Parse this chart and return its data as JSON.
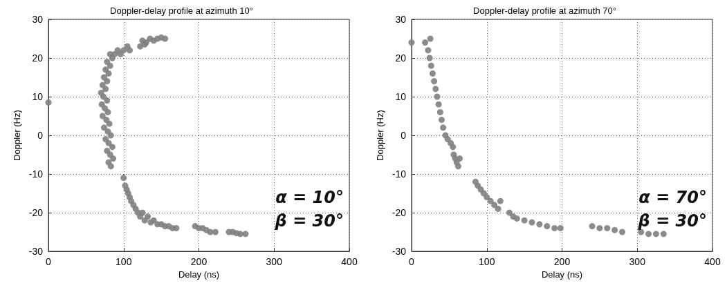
{
  "chart_data": [
    {
      "type": "scatter",
      "title": "Doppler-delay profile at azimuth 10°",
      "xlabel": "Delay (ns)",
      "ylabel": "Doppler (Hz)",
      "xlim": [
        0,
        400
      ],
      "xticks": [
        0,
        100,
        200,
        300,
        400
      ],
      "ylim": [
        -30,
        30
      ],
      "yticks": [
        -30,
        -20,
        -10,
        0,
        10,
        20,
        30
      ],
      "grid": true,
      "marker": "circle",
      "annotations": [
        "α = 10°",
        "β = 30°"
      ],
      "series": [
        {
          "color": "#808080",
          "x": [
            0,
            83,
            80,
            86,
            82,
            78,
            85,
            80,
            76,
            83,
            79,
            74,
            81,
            77,
            72,
            79,
            75,
            71,
            78,
            73,
            70,
            76,
            72,
            78,
            74,
            80,
            76,
            82,
            78,
            85,
            82,
            88,
            92,
            96,
            100,
            105,
            108,
            122,
            125,
            130,
            135,
            140,
            145,
            150,
            155,
            128,
            100,
            102,
            104,
            106,
            108,
            110,
            113,
            116,
            119,
            122,
            125,
            128,
            132,
            136,
            140,
            145,
            150,
            155,
            160,
            165,
            170,
            195,
            200,
            205,
            210,
            215,
            222,
            240,
            245,
            250,
            255,
            262
          ],
          "values": [
            8.5,
            -8,
            -7,
            -6,
            -5,
            -4,
            -3,
            -2,
            -1,
            0,
            1,
            2,
            3,
            4,
            5,
            6,
            7,
            8,
            9,
            10,
            11,
            12,
            13,
            14,
            15,
            16,
            17,
            18,
            19,
            20,
            21,
            21,
            22,
            21,
            22,
            23,
            22,
            23,
            24.5,
            24,
            25,
            24.5,
            25,
            25.3,
            25,
            23.5,
            -11,
            -13,
            -14,
            -15,
            -16,
            -17,
            -18,
            -19,
            -20,
            -21,
            -20,
            -22,
            -21,
            -22.5,
            -22,
            -23,
            -23,
            -23.5,
            -23.5,
            -24,
            -24,
            -23.5,
            -24,
            -24,
            -24.5,
            -25,
            -25,
            -25,
            -25,
            -25.3,
            -25.5,
            -25.5
          ]
        }
      ]
    },
    {
      "type": "scatter",
      "title": "Doppler-delay profile at azimuth 70°",
      "xlabel": "Delay (ns)",
      "ylabel": "Doppler (Hz)",
      "xlim": [
        0,
        400
      ],
      "xticks": [
        0,
        100,
        200,
        300,
        400
      ],
      "ylim": [
        -30,
        30
      ],
      "yticks": [
        -30,
        -20,
        -10,
        0,
        10,
        20,
        30
      ],
      "grid": true,
      "marker": "circle",
      "annotations": [
        "α = 70°",
        "β = 30°"
      ],
      "series": [
        {
          "color": "#808080",
          "x": [
            0,
            25,
            18,
            22,
            24,
            26,
            28,
            30,
            32,
            34,
            36,
            38,
            40,
            42,
            45,
            48,
            52,
            55,
            56,
            58,
            60,
            62,
            64,
            85,
            88,
            92,
            96,
            100,
            105,
            110,
            115,
            118,
            130,
            135,
            140,
            150,
            160,
            170,
            180,
            190,
            198,
            240,
            250,
            260,
            270,
            280,
            305,
            315,
            325,
            335
          ],
          "values": [
            24,
            25,
            24,
            22,
            20,
            18,
            16,
            14,
            12,
            10,
            8,
            6,
            4,
            2,
            0,
            -1,
            -2,
            -3,
            -5,
            -6,
            -7,
            -8,
            -6,
            -12,
            -13,
            -14,
            -15,
            -16,
            -17,
            -18,
            -19,
            -17,
            -20,
            -21,
            -21.5,
            -22,
            -22.5,
            -23,
            -23.5,
            -24,
            -24,
            -23.5,
            -24,
            -24,
            -24.5,
            -25,
            -25,
            -25.5,
            -25.5,
            -25.5
          ]
        }
      ]
    }
  ]
}
